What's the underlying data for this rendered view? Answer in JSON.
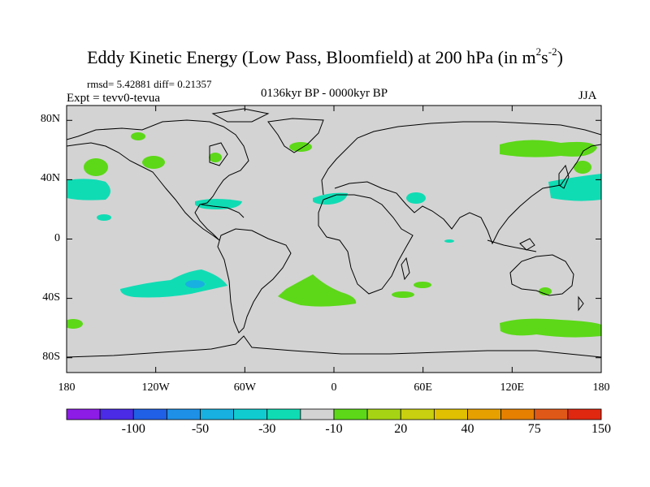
{
  "title": {
    "main": "Eddy Kinetic Energy (Low Pass, Bloomfield) at 200 hPa (in m",
    "sup1": "2",
    "mid": "s",
    "sup2": "-2",
    "end": ")"
  },
  "stats_label": "rmsd= 5.42881 diff= 0.21357",
  "experiment_label": "Expt = tevv0-tevua",
  "period_label": "0136kyr BP - 0000kyr BP",
  "season_label": "JJA",
  "map": {
    "lat_labels": [
      "80N",
      "40N",
      "0",
      "40S",
      "80S"
    ],
    "lat_values": [
      80,
      40,
      0,
      -40,
      -80
    ],
    "lon_labels": [
      "180",
      "120W",
      "60W",
      "0",
      "60E",
      "120E",
      "180"
    ],
    "lon_values": [
      -180,
      -120,
      -60,
      0,
      60,
      120,
      180
    ],
    "land_fill": "#d3d3d3",
    "coast_color": "#000000"
  },
  "colorbar": {
    "colors": [
      "#8c1ce6",
      "#4b2be6",
      "#2060e6",
      "#1e90e6",
      "#18b0e0",
      "#10ccd0",
      "#10dcb4",
      "#d3d3d3",
      "#5cd818",
      "#a6d414",
      "#c8d010",
      "#e0c000",
      "#e6a000",
      "#e68000",
      "#e05818",
      "#e02810"
    ],
    "labels": [
      "-100",
      "-50",
      "-30",
      "-10",
      "20",
      "40",
      "75",
      "150"
    ]
  }
}
